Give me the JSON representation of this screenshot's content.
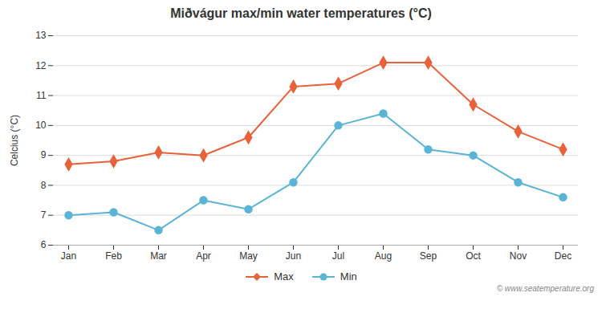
{
  "chart_data": {
    "type": "line",
    "title": "Miðvágur max/min water temperatures (°C)",
    "categories": [
      "Jan",
      "Feb",
      "Mar",
      "Apr",
      "May",
      "Jun",
      "Jul",
      "Aug",
      "Sep",
      "Oct",
      "Nov",
      "Dec"
    ],
    "series": [
      {
        "name": "Max",
        "color": "#e8623a",
        "marker": "diamond",
        "values": [
          8.7,
          8.8,
          9.1,
          9.0,
          9.6,
          11.3,
          11.4,
          12.1,
          12.1,
          10.7,
          9.8,
          9.2
        ]
      },
      {
        "name": "Min",
        "color": "#5ab4d6",
        "marker": "circle",
        "values": [
          7.0,
          7.1,
          6.5,
          7.5,
          7.2,
          8.1,
          10.0,
          10.4,
          9.2,
          9.0,
          8.1,
          7.6
        ]
      }
    ],
    "ylabel": "Celcius (°C)",
    "ylim": [
      6,
      13
    ],
    "yticks": [
      6,
      7,
      8,
      9,
      10,
      11,
      12,
      13
    ],
    "grid": true,
    "legend": "bottom",
    "annotations": [
      "© www.seatemperature.org"
    ]
  }
}
